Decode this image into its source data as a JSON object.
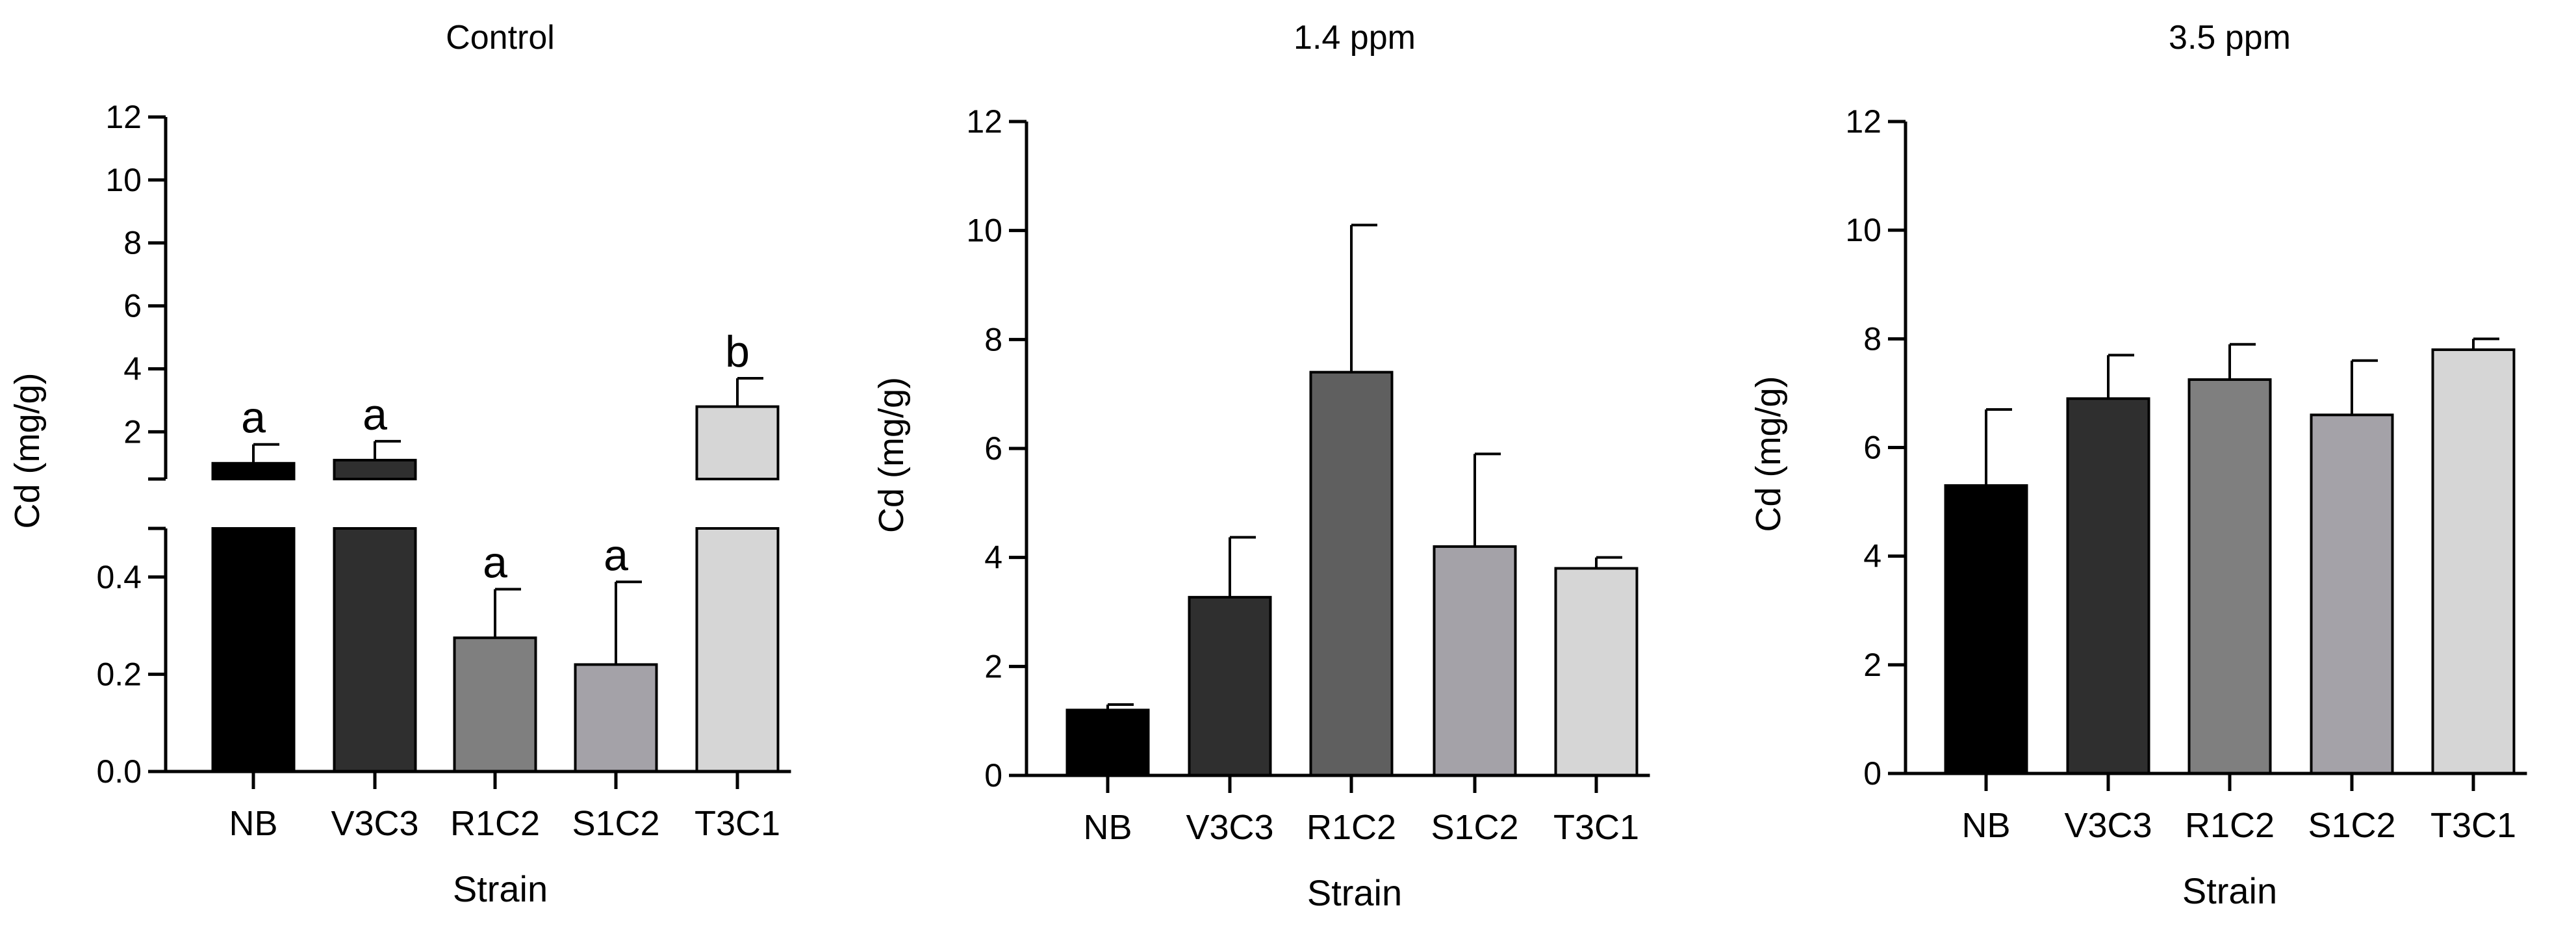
{
  "chart_data": [
    {
      "type": "bar",
      "title": "Control",
      "xlabel": "Strain",
      "ylabel": "Cd (mg/g)",
      "categories": [
        "NB",
        "V3C3",
        "R1C2",
        "S1C2",
        "T3C1"
      ],
      "values": [
        1.0,
        1.1,
        0.275,
        0.22,
        2.8
      ],
      "errors": [
        0.6,
        0.6,
        0.1,
        0.17,
        0.9
      ],
      "significance": [
        "a",
        "a",
        "a",
        "a",
        "b"
      ],
      "colors": [
        "#000000",
        "#2f2f2f",
        "#7f7f7f",
        "#a4a2a8",
        "#d6d6d6"
      ],
      "broken_axis": true,
      "ylim_lower": [
        0,
        0.5
      ],
      "yticks_lower": [
        0.0,
        0.2,
        0.4
      ],
      "yticks_lower_labels": [
        "0.0",
        "0.2",
        "0.4"
      ],
      "ylim_upper": [
        0.5,
        12
      ],
      "yticks_upper": [
        2,
        4,
        6,
        8,
        10,
        12
      ],
      "yticks_upper_labels": [
        "2",
        "4",
        "6",
        "8",
        "10",
        "12"
      ]
    },
    {
      "type": "bar",
      "title": "1.4 ppm",
      "xlabel": "Strain",
      "ylabel": "Cd (mg/g)",
      "categories": [
        "NB",
        "V3C3",
        "R1C2",
        "S1C2",
        "T3C1"
      ],
      "values": [
        1.2,
        3.27,
        7.4,
        4.2,
        3.8
      ],
      "errors": [
        0.1,
        1.1,
        2.7,
        1.7,
        0.2
      ],
      "colors": [
        "#000000",
        "#2f2f2f",
        "#5f5f5f",
        "#a4a2a8",
        "#d6d6d6"
      ],
      "ylim": [
        0,
        12
      ],
      "yticks": [
        0,
        2,
        4,
        6,
        8,
        10,
        12
      ],
      "ytick_labels": [
        "0",
        "2",
        "4",
        "6",
        "8",
        "10",
        "12"
      ]
    },
    {
      "type": "bar",
      "title": "3.5 ppm",
      "xlabel": "Strain",
      "ylabel": "Cd (mg/g)",
      "categories": [
        "NB",
        "V3C3",
        "R1C2",
        "S1C2",
        "T3C1"
      ],
      "values": [
        5.3,
        6.9,
        7.25,
        6.6,
        7.8
      ],
      "errors": [
        1.4,
        0.8,
        0.65,
        1.0,
        0.2
      ],
      "colors": [
        "#000000",
        "#2f2f2f",
        "#7f7f7f",
        "#a4a2a8",
        "#d6d6d6"
      ],
      "ylim": [
        0,
        12
      ],
      "yticks": [
        0,
        2,
        4,
        6,
        8,
        10,
        12
      ],
      "ytick_labels": [
        "0",
        "2",
        "4",
        "6",
        "8",
        "10",
        "12"
      ]
    }
  ]
}
